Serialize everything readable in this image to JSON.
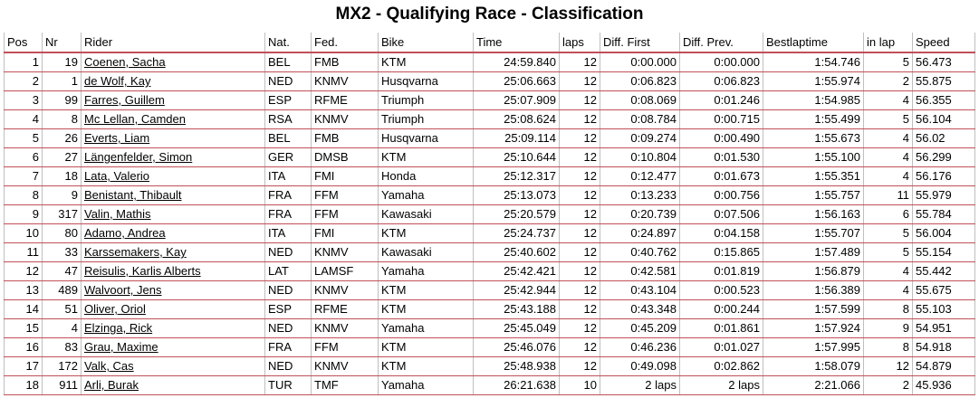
{
  "title": "MX2 - Qualifying Race - Classification",
  "columns": [
    "Pos",
    "Nr",
    "Rider",
    "Nat.",
    "Fed.",
    "Bike",
    "Time",
    "laps",
    "Diff. First",
    "Diff. Prev.",
    "Bestlaptime",
    "in lap",
    "Speed"
  ],
  "rows": [
    {
      "pos": "1",
      "nr": "19",
      "rider": "Coenen, Sacha",
      "nat": "BEL",
      "fed": "FMB",
      "bike": "KTM",
      "time": "24:59.840",
      "laps": "12",
      "diff_first": "0:00.000",
      "diff_prev": "0:00.000",
      "best": "1:54.746",
      "in_lap": "5",
      "speed": "56.473"
    },
    {
      "pos": "2",
      "nr": "1",
      "rider": "de Wolf, Kay",
      "nat": "NED",
      "fed": "KNMV",
      "bike": "Husqvarna",
      "time": "25:06.663",
      "laps": "12",
      "diff_first": "0:06.823",
      "diff_prev": "0:06.823",
      "best": "1:55.974",
      "in_lap": "2",
      "speed": "55.875"
    },
    {
      "pos": "3",
      "nr": "99",
      "rider": "Farres, Guillem",
      "nat": "ESP",
      "fed": "RFME",
      "bike": "Triumph",
      "time": "25:07.909",
      "laps": "12",
      "diff_first": "0:08.069",
      "diff_prev": "0:01.246",
      "best": "1:54.985",
      "in_lap": "4",
      "speed": "56.355"
    },
    {
      "pos": "4",
      "nr": "8",
      "rider": "Mc Lellan, Camden",
      "nat": "RSA",
      "fed": "KNMV",
      "bike": "Triumph",
      "time": "25:08.624",
      "laps": "12",
      "diff_first": "0:08.784",
      "diff_prev": "0:00.715",
      "best": "1:55.499",
      "in_lap": "5",
      "speed": "56.104"
    },
    {
      "pos": "5",
      "nr": "26",
      "rider": "Everts, Liam",
      "nat": "BEL",
      "fed": "FMB",
      "bike": "Husqvarna",
      "time": "25:09.114",
      "laps": "12",
      "diff_first": "0:09.274",
      "diff_prev": "0:00.490",
      "best": "1:55.673",
      "in_lap": "4",
      "speed": "56.02"
    },
    {
      "pos": "6",
      "nr": "27",
      "rider": "Längenfelder, Simon",
      "nat": "GER",
      "fed": "DMSB",
      "bike": "KTM",
      "time": "25:10.644",
      "laps": "12",
      "diff_first": "0:10.804",
      "diff_prev": "0:01.530",
      "best": "1:55.100",
      "in_lap": "4",
      "speed": "56.299"
    },
    {
      "pos": "7",
      "nr": "18",
      "rider": "Lata, Valerio",
      "nat": "ITA",
      "fed": "FMI",
      "bike": "Honda",
      "time": "25:12.317",
      "laps": "12",
      "diff_first": "0:12.477",
      "diff_prev": "0:01.673",
      "best": "1:55.351",
      "in_lap": "4",
      "speed": "56.176"
    },
    {
      "pos": "8",
      "nr": "9",
      "rider": "Benistant, Thibault",
      "nat": "FRA",
      "fed": "FFM",
      "bike": "Yamaha",
      "time": "25:13.073",
      "laps": "12",
      "diff_first": "0:13.233",
      "diff_prev": "0:00.756",
      "best": "1:55.757",
      "in_lap": "11",
      "speed": "55.979"
    },
    {
      "pos": "9",
      "nr": "317",
      "rider": "Valin, Mathis",
      "nat": "FRA",
      "fed": "FFM",
      "bike": "Kawasaki",
      "time": "25:20.579",
      "laps": "12",
      "diff_first": "0:20.739",
      "diff_prev": "0:07.506",
      "best": "1:56.163",
      "in_lap": "6",
      "speed": "55.784"
    },
    {
      "pos": "10",
      "nr": "80",
      "rider": "Adamo, Andrea",
      "nat": "ITA",
      "fed": "FMI",
      "bike": "KTM",
      "time": "25:24.737",
      "laps": "12",
      "diff_first": "0:24.897",
      "diff_prev": "0:04.158",
      "best": "1:55.707",
      "in_lap": "5",
      "speed": "56.004"
    },
    {
      "pos": "11",
      "nr": "33",
      "rider": "Karssemakers, Kay",
      "nat": "NED",
      "fed": "KNMV",
      "bike": "Kawasaki",
      "time": "25:40.602",
      "laps": "12",
      "diff_first": "0:40.762",
      "diff_prev": "0:15.865",
      "best": "1:57.489",
      "in_lap": "5",
      "speed": "55.154"
    },
    {
      "pos": "12",
      "nr": "47",
      "rider": "Reisulis, Karlis Alberts",
      "nat": "LAT",
      "fed": "LAMSF",
      "bike": "Yamaha",
      "time": "25:42.421",
      "laps": "12",
      "diff_first": "0:42.581",
      "diff_prev": "0:01.819",
      "best": "1:56.879",
      "in_lap": "4",
      "speed": "55.442"
    },
    {
      "pos": "13",
      "nr": "489",
      "rider": "Walvoort, Jens",
      "nat": "NED",
      "fed": "KNMV",
      "bike": "KTM",
      "time": "25:42.944",
      "laps": "12",
      "diff_first": "0:43.104",
      "diff_prev": "0:00.523",
      "best": "1:56.389",
      "in_lap": "4",
      "speed": "55.675"
    },
    {
      "pos": "14",
      "nr": "51",
      "rider": "Oliver, Oriol",
      "nat": "ESP",
      "fed": "RFME",
      "bike": "KTM",
      "time": "25:43.188",
      "laps": "12",
      "diff_first": "0:43.348",
      "diff_prev": "0:00.244",
      "best": "1:57.599",
      "in_lap": "8",
      "speed": "55.103"
    },
    {
      "pos": "15",
      "nr": "4",
      "rider": "Elzinga, Rick",
      "nat": "NED",
      "fed": "KNMV",
      "bike": "Yamaha",
      "time": "25:45.049",
      "laps": "12",
      "diff_first": "0:45.209",
      "diff_prev": "0:01.861",
      "best": "1:57.924",
      "in_lap": "9",
      "speed": "54.951"
    },
    {
      "pos": "16",
      "nr": "83",
      "rider": "Grau, Maxime",
      "nat": "FRA",
      "fed": "FFM",
      "bike": "KTM",
      "time": "25:46.076",
      "laps": "12",
      "diff_first": "0:46.236",
      "diff_prev": "0:01.027",
      "best": "1:57.995",
      "in_lap": "8",
      "speed": "54.918"
    },
    {
      "pos": "17",
      "nr": "172",
      "rider": "Valk, Cas",
      "nat": "NED",
      "fed": "KNMV",
      "bike": "KTM",
      "time": "25:48.938",
      "laps": "12",
      "diff_first": "0:49.098",
      "diff_prev": "0:02.862",
      "best": "1:58.079",
      "in_lap": "12",
      "speed": "54.879"
    },
    {
      "pos": "18",
      "nr": "911",
      "rider": "Arli, Burak",
      "nat": "TUR",
      "fed": "TMF",
      "bike": "Yamaha",
      "time": "26:21.638",
      "laps": "10",
      "diff_first": "2 laps",
      "diff_prev": "2 laps",
      "best": "2:21.066",
      "in_lap": "2",
      "speed": "45.936"
    }
  ]
}
